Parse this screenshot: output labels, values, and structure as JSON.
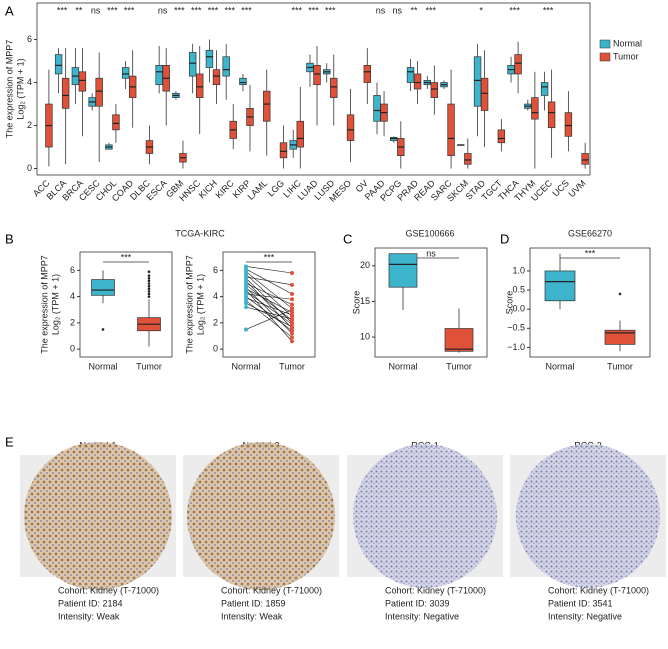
{
  "chart_data": [
    {
      "type": "box",
      "panel": "A",
      "ylabel": [
        "The expression of MPP7",
        "Log₂ (TPM + 1)"
      ],
      "categories": [
        "ACC",
        "BLCA",
        "BRCA",
        "CESC",
        "CHOL",
        "COAD",
        "DLBC",
        "ESCA",
        "GBM",
        "HNSC",
        "KICH",
        "KIRC",
        "KIRP",
        "LAML",
        "LGG",
        "LIHC",
        "LUAD",
        "LUSD",
        "MESO",
        "OV",
        "PAAD",
        "PCPG",
        "PRAD",
        "READ",
        "SARC",
        "SKCM",
        "STAD",
        "TGCT",
        "THCA",
        "THYM",
        "UCEC",
        "UCS",
        "UVM"
      ],
      "significance": [
        null,
        "***",
        "**",
        "ns",
        "***",
        "***",
        null,
        "ns",
        "***",
        "***",
        "***",
        "***",
        "***",
        null,
        null,
        "***",
        "***",
        "***",
        null,
        null,
        "ns",
        "ns",
        "**",
        "***",
        null,
        null,
        "*",
        null,
        "***",
        null,
        "***",
        null,
        null
      ],
      "series": [
        {
          "name": "Normal",
          "color": "#3cb4cc",
          "values": [
            null,
            [
              3.5,
              4.4,
              4.8,
              5.3,
              5.6
            ],
            [
              3.0,
              3.9,
              4.3,
              4.7,
              5.6
            ],
            [
              2.7,
              2.9,
              3.1,
              3.3,
              3.5
            ],
            [
              0.9,
              0.9,
              1.0,
              1.1,
              1.2
            ],
            [
              3.7,
              4.2,
              4.4,
              4.7,
              5.0
            ],
            null,
            [
              3.5,
              3.9,
              4.5,
              4.8,
              5.7
            ],
            [
              3.2,
              3.3,
              3.4,
              3.5,
              3.6
            ],
            [
              3.5,
              4.3,
              4.9,
              5.4,
              5.8
            ],
            [
              4.0,
              4.7,
              5.2,
              5.5,
              6.0
            ],
            [
              3.2,
              4.3,
              4.6,
              5.2,
              5.8
            ],
            [
              3.6,
              3.9,
              4.0,
              4.2,
              4.4
            ],
            null,
            null,
            [
              0.5,
              0.9,
              1.1,
              1.3,
              1.8
            ],
            [
              3.8,
              4.5,
              4.7,
              4.9,
              5.3
            ],
            [
              4.0,
              4.4,
              4.5,
              4.6,
              4.9
            ],
            null,
            null,
            [
              1.6,
              2.2,
              2.7,
              3.4,
              4.0
            ],
            [
              1.2,
              1.3,
              1.4,
              1.45,
              1.5
            ],
            [
              3.6,
              4.0,
              4.5,
              4.7,
              5.1
            ],
            [
              3.7,
              3.9,
              4.0,
              4.1,
              4.3
            ],
            [
              3.7,
              3.8,
              3.9,
              4.0,
              4.1
            ],
            [
              1.1,
              1.1,
              1.1,
              1.1,
              1.1
            ],
            [
              1.5,
              2.9,
              4.1,
              5.2,
              5.8
            ],
            null,
            [
              4.0,
              4.4,
              4.6,
              4.8,
              5.2
            ],
            [
              2.7,
              2.8,
              2.9,
              3.0,
              3.2
            ],
            [
              2.7,
              3.4,
              3.8,
              4.0,
              4.5
            ],
            null,
            null
          ]
        },
        {
          "name": "Tumor",
          "color": "#e0513a",
          "values": [
            [
              0.1,
              1.0,
              2.0,
              3.0,
              4.6
            ],
            [
              0.2,
              2.8,
              3.4,
              4.2,
              5.6
            ],
            [
              1.5,
              3.6,
              4.1,
              4.5,
              5.6
            ],
            [
              0.3,
              2.9,
              3.6,
              4.2,
              5.4
            ],
            [
              1.2,
              1.8,
              2.1,
              2.5,
              3.0
            ],
            [
              1.9,
              3.3,
              3.8,
              4.3,
              5.5
            ],
            [
              0.2,
              0.7,
              1.0,
              1.3,
              2.0
            ],
            [
              2.0,
              3.6,
              4.2,
              4.8,
              5.6
            ],
            [
              0.0,
              0.3,
              0.5,
              0.7,
              1.3
            ],
            [
              1.6,
              3.3,
              3.8,
              4.4,
              5.7
            ],
            [
              3.0,
              3.9,
              4.3,
              4.6,
              5.5
            ],
            [
              0.9,
              1.4,
              1.8,
              2.2,
              3.0
            ],
            [
              0.8,
              2.0,
              2.4,
              2.8,
              3.9
            ],
            [
              0.6,
              2.2,
              3.0,
              3.6,
              4.6
            ],
            [
              0.0,
              0.5,
              0.8,
              1.2,
              2.0
            ],
            [
              0.0,
              1.0,
              1.4,
              2.2,
              3.8
            ],
            [
              2.0,
              3.9,
              4.4,
              4.8,
              5.7
            ],
            [
              2.0,
              3.3,
              3.8,
              4.2,
              5.3
            ],
            [
              0.3,
              1.3,
              1.8,
              2.5,
              3.7
            ],
            [
              3.0,
              4.0,
              4.5,
              4.8,
              5.6
            ],
            [
              1.5,
              2.2,
              2.6,
              3.0,
              3.6
            ],
            [
              0.0,
              0.6,
              1.0,
              1.4,
              2.2
            ],
            [
              3.0,
              3.7,
              4.0,
              4.4,
              5.0
            ],
            [
              2.5,
              3.3,
              3.7,
              4.0,
              4.8
            ],
            [
              0.0,
              0.6,
              1.4,
              3.0,
              4.6
            ],
            [
              0.0,
              0.2,
              0.4,
              0.7,
              1.4
            ],
            [
              1.0,
              2.7,
              3.5,
              4.2,
              5.5
            ],
            [
              0.8,
              1.2,
              1.4,
              1.8,
              2.3
            ],
            [
              3.5,
              4.4,
              4.9,
              5.3,
              5.9
            ],
            [
              0.0,
              2.3,
              2.6,
              3.3,
              4.5
            ],
            [
              0.5,
              1.9,
              2.6,
              3.1,
              4.6
            ],
            [
              0.8,
              1.5,
              2.0,
              2.6,
              3.6
            ],
            [
              0.0,
              0.2,
              0.4,
              0.7,
              1.2
            ]
          ]
        }
      ],
      "ylim": [
        -0.3,
        7.7
      ],
      "yticks": [
        0,
        2,
        4,
        6
      ],
      "legend": "right"
    },
    {
      "type": "box",
      "panel": "B",
      "title": "TCGA-KIRC",
      "ylabel": [
        "The expression of MPP7",
        "Log₂ (TPM + 1)"
      ],
      "categories": [
        "Normal",
        "Tumor"
      ],
      "values": [
        [
          3.5,
          4.1,
          4.5,
          5.3,
          6.0
        ],
        [
          0.2,
          1.4,
          1.9,
          2.4,
          3.8
        ]
      ],
      "colors": [
        "#3cb4cc",
        "#e0513a"
      ],
      "outliers": [
        [
          1.5
        ],
        [
          4.0,
          4.2,
          4.4,
          4.6,
          4.8,
          5.0,
          5.2,
          5.4,
          5.6,
          5.9
        ]
      ],
      "significance": "***",
      "ylim": [
        -0.6,
        7.4
      ],
      "yticks": [
        0,
        2,
        4,
        6
      ]
    },
    {
      "type": "paired",
      "ylabel": [
        "The expression of MPP7",
        "Log₂ (TPM + 1)"
      ],
      "categories": [
        "Normal",
        "Tumor"
      ],
      "colors": [
        "#3cb4cc",
        "#e0513a"
      ],
      "pairs": [
        [
          6.3,
          5.8
        ],
        [
          6.1,
          4.2
        ],
        [
          5.9,
          3.1
        ],
        [
          5.7,
          2.5
        ],
        [
          5.5,
          4.9
        ],
        [
          5.4,
          2.0
        ],
        [
          5.2,
          1.6
        ],
        [
          5.0,
          3.4
        ],
        [
          4.9,
          2.2
        ],
        [
          4.7,
          1.2
        ],
        [
          4.6,
          2.8
        ],
        [
          4.5,
          0.6
        ],
        [
          4.4,
          1.9
        ],
        [
          4.2,
          3.8
        ],
        [
          4.0,
          1.4
        ],
        [
          3.9,
          2.6
        ],
        [
          3.7,
          0.9
        ],
        [
          3.5,
          1.7
        ],
        [
          3.2,
          2.3
        ],
        [
          1.5,
          3.0
        ]
      ],
      "significance": "***",
      "ylim": [
        -0.6,
        7.4
      ],
      "yticks": [
        0,
        2,
        4,
        6
      ]
    },
    {
      "type": "box",
      "panel": "C",
      "title": "GSE100666",
      "ylabel": [
        "Score"
      ],
      "categories": [
        "Normal",
        "Tumor"
      ],
      "values": [
        [
          13.8,
          17.0,
          20.2,
          21.7,
          21.7
        ],
        [
          7.8,
          8.0,
          8.3,
          11.2,
          14.0
        ]
      ],
      "colors": [
        "#3cb4cc",
        "#e0513a"
      ],
      "significance": "ns",
      "ylim": [
        7.2,
        22.5
      ],
      "yticks": [
        10,
        15,
        20
      ]
    },
    {
      "type": "box",
      "panel": "D",
      "title": "GSE66270",
      "ylabel": [
        "Score"
      ],
      "categories": [
        "Normal",
        "Tumor"
      ],
      "values": [
        [
          0.0,
          0.22,
          0.72,
          1.0,
          1.45
        ],
        [
          -1.1,
          -0.92,
          -0.62,
          -0.55,
          -0.3
        ]
      ],
      "colors": [
        "#3cb4cc",
        "#e0513a"
      ],
      "outliers": [
        [],
        [
          0.4
        ]
      ],
      "significance": "***",
      "ylim": [
        -1.25,
        1.6
      ],
      "yticks": [
        {
          "value": -1,
          "label": "−1.0"
        },
        {
          "value": -0.5,
          "label": "−0.5"
        },
        {
          "value": 0,
          "label": "0.0"
        },
        {
          "value": 0.5,
          "label": "0.5"
        },
        {
          "value": 1,
          "label": "1.0"
        }
      ]
    }
  ],
  "panel_e": {
    "panel": "E",
    "tiles": [
      {
        "title": "Normal-1",
        "lines": [
          "Cohort: Kidney (T-71000)",
          "Patient ID: 2184",
          "Intensity: Weak"
        ]
      },
      {
        "title": "Normal-2",
        "lines": [
          "Cohort: Kidney (T-71000)",
          "Patient ID: 1859",
          "Intensity: Weak"
        ]
      },
      {
        "title": "RCC-1",
        "lines": [
          "Cohort: Kidney (T-71000)",
          "Patient ID: 3039",
          "Intensity: Negative"
        ]
      },
      {
        "title": "RCC-2",
        "lines": [
          "Cohort: Kidney (T-71000)",
          "Patient ID: 3541",
          "Intensity: Negative"
        ]
      }
    ]
  }
}
